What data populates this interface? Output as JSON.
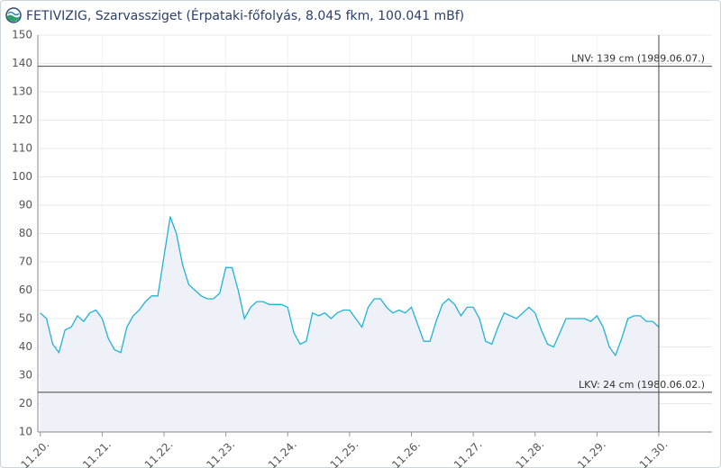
{
  "chart_data": {
    "type": "line",
    "title": "FETIVIZIG, Szarvassziget (Érpataki-főfolyás, 8.045 fkm, 100.041 mBf)",
    "x": [
      20,
      20.1,
      20.2,
      20.3,
      20.4,
      20.5,
      20.6,
      20.7,
      20.8,
      20.9,
      21,
      21.1,
      21.2,
      21.3,
      21.4,
      21.5,
      21.6,
      21.7,
      21.8,
      21.9,
      22,
      22.1,
      22.2,
      22.3,
      22.4,
      22.5,
      22.6,
      22.7,
      22.8,
      22.9,
      23,
      23.1,
      23.2,
      23.3,
      23.4,
      23.5,
      23.6,
      23.7,
      23.8,
      23.9,
      24,
      24.1,
      24.2,
      24.3,
      24.4,
      24.5,
      24.6,
      24.7,
      24.8,
      24.9,
      25,
      25.1,
      25.2,
      25.3,
      25.4,
      25.5,
      25.6,
      25.7,
      25.8,
      25.9,
      26,
      26.1,
      26.2,
      26.3,
      26.4,
      26.5,
      26.6,
      26.7,
      26.8,
      26.9,
      27,
      27.1,
      27.2,
      27.3,
      27.4,
      27.5,
      27.6,
      27.7,
      27.8,
      27.9,
      28,
      28.1,
      28.2,
      28.3,
      28.4,
      28.5,
      28.6,
      28.7,
      28.8,
      28.9,
      29,
      29.1,
      29.2,
      29.3,
      29.4,
      29.5,
      29.6,
      29.7,
      29.8,
      29.9,
      30
    ],
    "series": [
      {
        "color": "#22b2d8",
        "fill": "#eef1f7",
        "values": [
          52,
          50,
          41,
          38,
          46,
          47,
          51,
          49,
          52,
          53,
          50,
          43,
          39,
          38,
          47,
          51,
          53,
          56,
          58,
          58,
          72,
          86,
          80,
          69,
          62,
          60,
          58,
          57,
          57,
          59,
          68,
          68,
          60,
          50,
          54,
          56,
          56,
          55,
          55,
          55,
          54,
          45,
          41,
          42,
          52,
          51,
          52,
          50,
          52,
          53,
          53,
          50,
          47,
          54,
          57,
          57,
          54,
          52,
          53,
          52,
          54,
          48,
          42,
          42,
          49,
          55,
          57,
          55,
          51,
          54,
          54,
          50,
          42,
          41,
          47,
          52,
          51,
          50,
          52,
          54,
          52,
          46,
          41,
          40,
          45,
          50,
          50,
          50,
          50,
          49,
          51,
          47,
          40,
          37,
          43,
          50,
          51,
          51,
          49,
          49,
          47
        ]
      }
    ],
    "xlim": [
      19.96,
      30.86
    ],
    "xticks": [
      {
        "value": 20,
        "label": "11.20."
      },
      {
        "value": 21,
        "label": "11.21."
      },
      {
        "value": 22,
        "label": "11.22."
      },
      {
        "value": 23,
        "label": "11.23."
      },
      {
        "value": 24,
        "label": "11.24."
      },
      {
        "value": 25,
        "label": "11.25."
      },
      {
        "value": 26,
        "label": "11.26."
      },
      {
        "value": 27,
        "label": "11.27."
      },
      {
        "value": 28,
        "label": "11.28."
      },
      {
        "value": 29,
        "label": "11.29."
      },
      {
        "value": 30,
        "label": "11.30."
      }
    ],
    "ylim": [
      10,
      150
    ],
    "yticks": [
      10,
      20,
      30,
      40,
      50,
      60,
      70,
      80,
      90,
      100,
      110,
      120,
      130,
      140,
      150
    ],
    "grid": true,
    "reference_lines": [
      {
        "value": 139,
        "label": "LNV: 139 cm (1989.06.07.)"
      },
      {
        "value": 24,
        "label": "LKV: 24 cm (1980.06.02.)"
      }
    ],
    "vline": 30
  }
}
